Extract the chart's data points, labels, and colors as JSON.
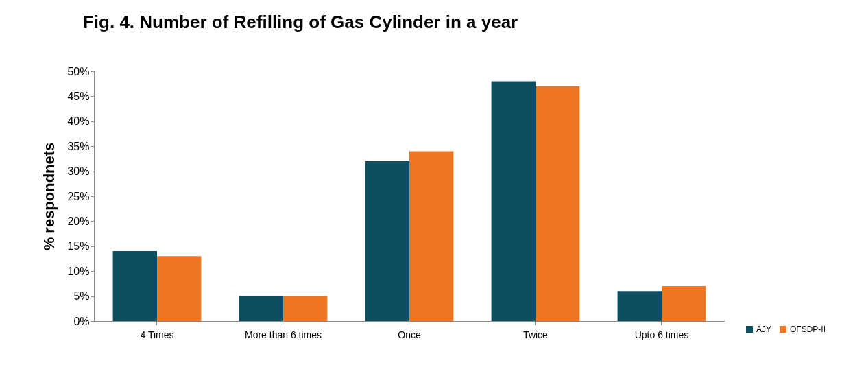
{
  "chart_data": {
    "type": "bar",
    "title": "Fig. 4. Number of Refilling of Gas Cylinder in a year",
    "ylabel": "% respondnets",
    "categories": [
      "4 Times",
      "More than 6 times",
      "Once",
      "Twice",
      "Upto 6 times"
    ],
    "series": [
      {
        "name": "AJY",
        "color": "#0e4f5f",
        "values": [
          14,
          5,
          32,
          48,
          6
        ]
      },
      {
        "name": "OFSDP-II",
        "color": "#ee7623",
        "values": [
          13,
          5,
          34,
          47,
          7
        ]
      }
    ],
    "ylim": [
      0,
      50
    ],
    "yticks": [
      {
        "value": 0,
        "label": "0%"
      },
      {
        "value": 5,
        "label": "5%"
      },
      {
        "value": 10,
        "label": "10%"
      },
      {
        "value": 15,
        "label": "15%"
      },
      {
        "value": 20,
        "label": "20%"
      },
      {
        "value": 25,
        "label": "25%"
      },
      {
        "value": 30,
        "label": "30%"
      },
      {
        "value": 35,
        "label": "35%"
      },
      {
        "value": 40,
        "label": "40%"
      },
      {
        "value": 45,
        "label": "45%"
      },
      {
        "value": 50,
        "label": "50%"
      }
    ],
    "grid": false,
    "legend": "bottom right"
  }
}
